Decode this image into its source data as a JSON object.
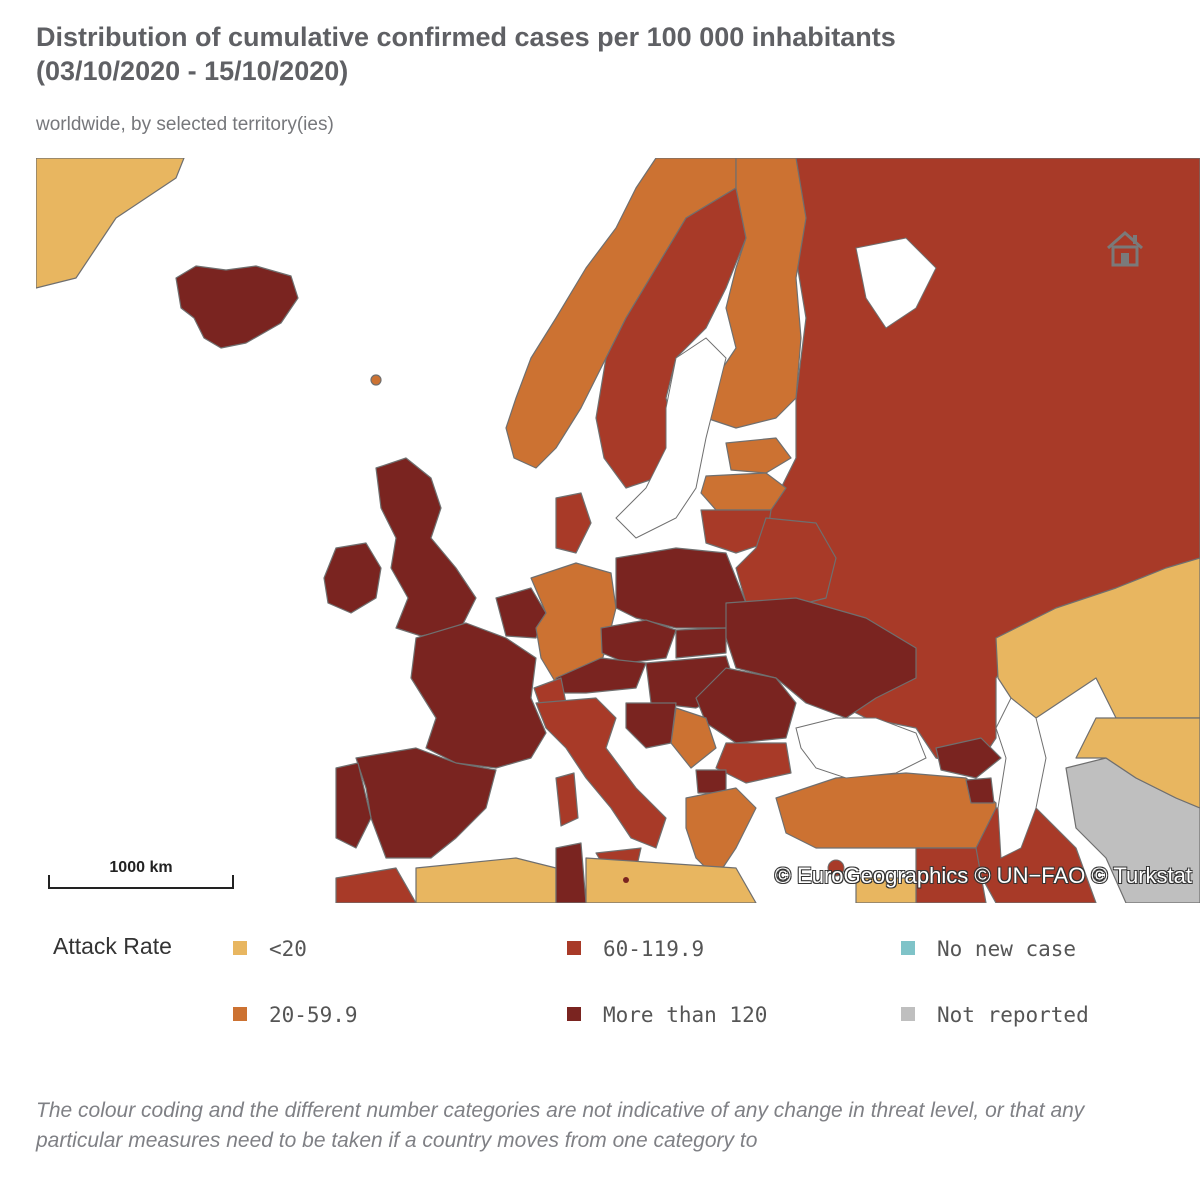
{
  "header": {
    "title_line1": "Distribution of cumulative confirmed cases per 100 000 inhabitants",
    "title_line2": "(03/10/2020 - 15/10/2020)",
    "subtitle": "worldwide, by selected territory(ies)"
  },
  "map": {
    "copyright": "© EuroGeographics © UN−FAO © Turkstat",
    "scale_label": "1000 km",
    "sea_color": "#ffffff",
    "border_color": "#6f6f6f",
    "home_button_icon": "home-icon"
  },
  "legend": {
    "title": "Attack Rate",
    "items": [
      {
        "label": "<20",
        "color": "#e8b660"
      },
      {
        "label": "20-59.9",
        "color": "#cc7232"
      },
      {
        "label": "60-119.9",
        "color": "#a83a28"
      },
      {
        "label": "More than 120",
        "color": "#7a2420"
      },
      {
        "label": "No new case",
        "color": "#7fc3c8"
      },
      {
        "label": "Not reported",
        "color": "#bfbfbf"
      }
    ]
  },
  "footnote": "The colour coding and the different number categories are not indicative of any change in threat level, or that any particular measures need to be taken if a country moves from one category to"
}
